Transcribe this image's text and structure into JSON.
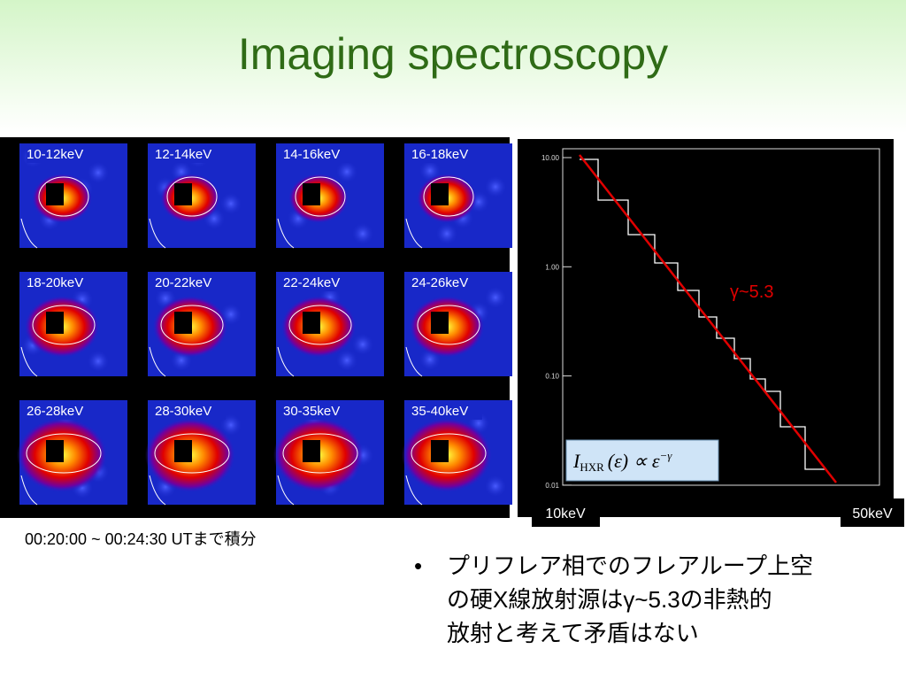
{
  "title": "Imaging spectroscopy",
  "panels": [
    {
      "label": "10-12keV"
    },
    {
      "label": "12-14keV"
    },
    {
      "label": "14-16keV"
    },
    {
      "label": "16-18keV"
    },
    {
      "label": "18-20keV"
    },
    {
      "label": "20-22keV"
    },
    {
      "label": "22-24keV"
    },
    {
      "label": "24-26keV"
    },
    {
      "label": "26-28keV"
    },
    {
      "label": "28-30keV"
    },
    {
      "label": "30-35keV"
    },
    {
      "label": "35-40keV"
    }
  ],
  "caption": "00:20:00 ~ 00:24:30 UTまで積分",
  "plot": {
    "yticks": [
      "10.00",
      "1.00",
      "0.10",
      "0.01"
    ],
    "fit_label": "γ~5.3",
    "x_start": "10keV",
    "x_end": "50keV",
    "formula": {
      "symbol": "I",
      "subscript": "HXR",
      "body": "(ε) ∝ ε",
      "exponent": "−γ"
    }
  },
  "bullet": {
    "lines": [
      "プリフレア相でのフレアループ上空",
      "の硬X線放射源はγ~5.3の非熱的",
      "放射と考えて矛盾はない"
    ]
  }
}
